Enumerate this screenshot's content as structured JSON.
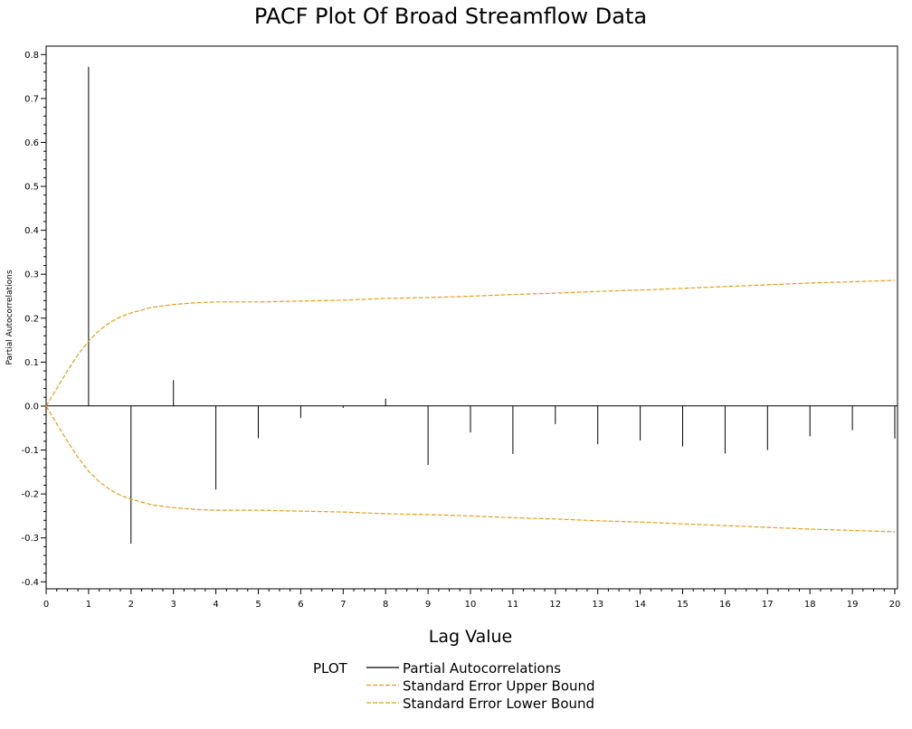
{
  "chart_data": {
    "type": "line",
    "title": "PACF Plot Of Broad Streamflow Data",
    "xlabel": "Lag Value",
    "ylabel": "Partial Autocorrelations",
    "xlim": [
      0,
      20
    ],
    "ylim": [
      -0.4,
      0.8
    ],
    "x_ticks": [
      0,
      1,
      2,
      3,
      4,
      5,
      6,
      7,
      8,
      9,
      10,
      11,
      12,
      13,
      14,
      15,
      16,
      17,
      18,
      19,
      20
    ],
    "y_ticks": [
      "-0.4",
      "-0.3",
      "-0.2",
      "-0.1",
      "0.0",
      "0.1",
      "0.2",
      "0.3",
      "0.4",
      "0.5",
      "0.6",
      "0.7",
      "0.8"
    ],
    "grid": false,
    "legend": {
      "title": "PLOT",
      "position": "bottom",
      "entries": [
        {
          "label": "Partial Autocorrelations",
          "color": "#000000",
          "dashed": false
        },
        {
          "label": "Standard Error Upper Bound",
          "color": "#e0a020",
          "dashed": true
        },
        {
          "label": "Standard Error Lower Bound",
          "color": "#e0a020",
          "dashed": true
        }
      ]
    },
    "series": [
      {
        "name": "Partial Autocorrelations",
        "kind": "needle",
        "color": "#000000",
        "x": [
          1,
          2,
          3,
          4,
          5,
          6,
          7,
          8,
          9,
          10,
          11,
          12,
          13,
          14,
          15,
          16,
          17,
          18,
          19,
          20
        ],
        "values": [
          0.772,
          -0.313,
          0.059,
          -0.19,
          -0.073,
          -0.027,
          -0.004,
          0.017,
          -0.134,
          -0.06,
          -0.109,
          -0.041,
          -0.087,
          -0.078,
          -0.092,
          -0.108,
          -0.1,
          -0.069,
          -0.055,
          -0.074
        ]
      },
      {
        "name": "Standard Error Upper Bound",
        "kind": "line",
        "color": "#e0a020",
        "x": [
          0,
          0.25,
          0.5,
          0.75,
          1,
          1.25,
          1.5,
          1.75,
          2,
          2.5,
          3,
          3.5,
          4,
          5,
          6,
          7,
          8,
          9,
          10,
          11,
          12,
          13,
          14,
          15,
          16,
          17,
          18,
          19,
          20
        ],
        "values": [
          0.0,
          0.04,
          0.08,
          0.117,
          0.148,
          0.172,
          0.19,
          0.203,
          0.212,
          0.225,
          0.231,
          0.235,
          0.237,
          0.237,
          0.239,
          0.241,
          0.245,
          0.247,
          0.25,
          0.254,
          0.257,
          0.261,
          0.264,
          0.268,
          0.272,
          0.276,
          0.28,
          0.283,
          0.286
        ]
      },
      {
        "name": "Standard Error Lower Bound",
        "kind": "line",
        "color": "#e0a020",
        "x": [
          0,
          0.25,
          0.5,
          0.75,
          1,
          1.25,
          1.5,
          1.75,
          2,
          2.5,
          3,
          3.5,
          4,
          5,
          6,
          7,
          8,
          9,
          10,
          11,
          12,
          13,
          14,
          15,
          16,
          17,
          18,
          19,
          20
        ],
        "values": [
          0.0,
          -0.04,
          -0.08,
          -0.117,
          -0.148,
          -0.172,
          -0.19,
          -0.203,
          -0.212,
          -0.225,
          -0.231,
          -0.235,
          -0.237,
          -0.237,
          -0.239,
          -0.241,
          -0.245,
          -0.247,
          -0.25,
          -0.254,
          -0.257,
          -0.261,
          -0.264,
          -0.268,
          -0.272,
          -0.276,
          -0.28,
          -0.283,
          -0.286
        ]
      }
    ]
  }
}
